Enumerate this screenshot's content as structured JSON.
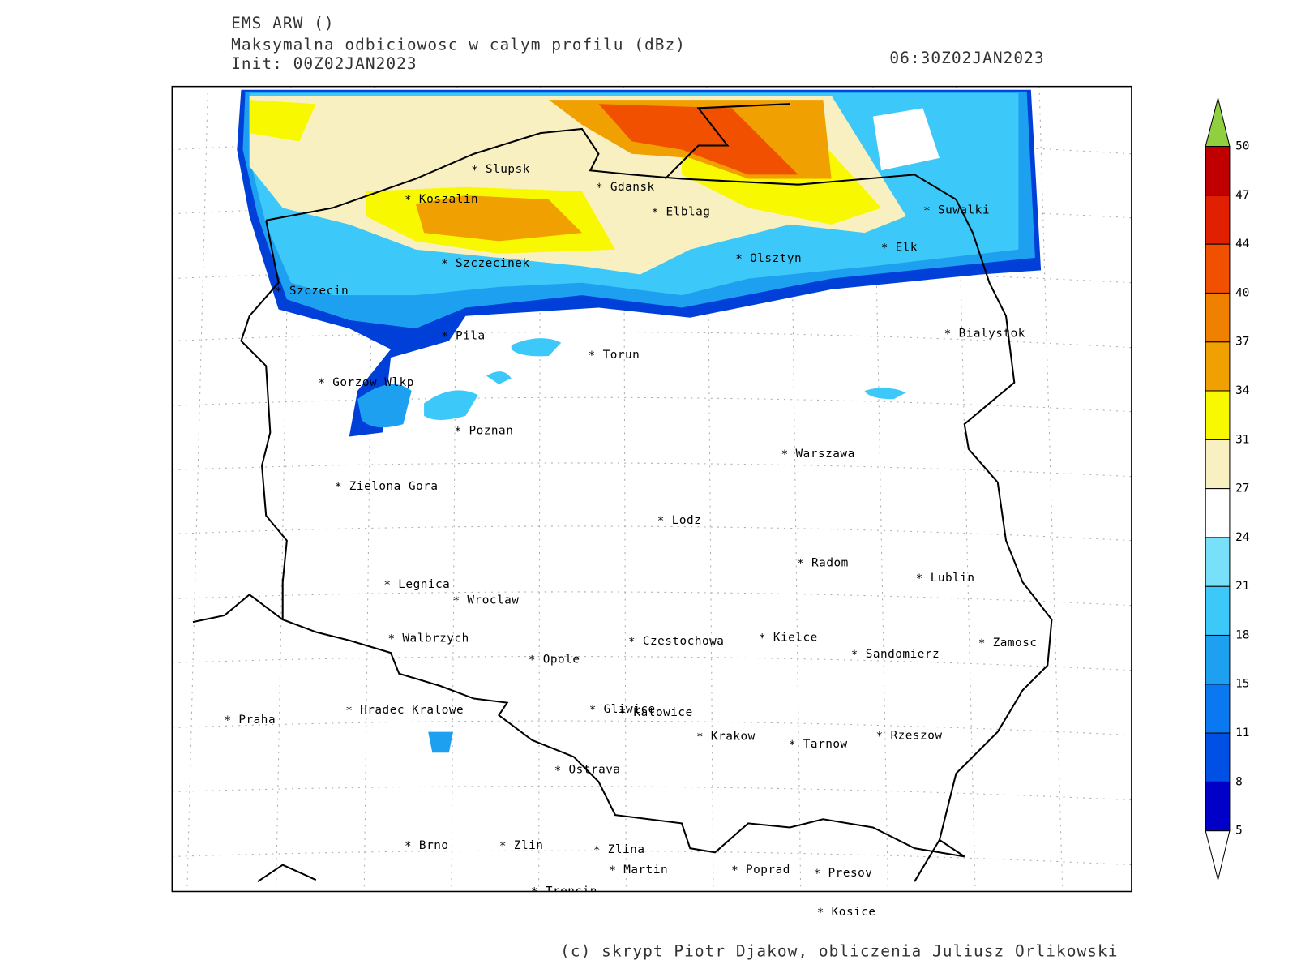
{
  "header": {
    "model": "EMS ARW ()",
    "field": "Maksymalna odbiciowosc w calym profilu (dBz)",
    "init": "Init: 00Z02JAN2023",
    "valid": "06:30Z02JAN2023"
  },
  "cities": [
    {
      "name": "Slupsk"
    },
    {
      "name": "Koszalin"
    },
    {
      "name": "Gdansk"
    },
    {
      "name": "Elblag"
    },
    {
      "name": "Suwalki"
    },
    {
      "name": "Elk"
    },
    {
      "name": "Olsztyn"
    },
    {
      "name": "Szczecinek"
    },
    {
      "name": "Szczecin"
    },
    {
      "name": "Pila"
    },
    {
      "name": "Bialystok"
    },
    {
      "name": "Torun"
    },
    {
      "name": "Gorzow Wlkp"
    },
    {
      "name": "Poznan"
    },
    {
      "name": "Warszawa"
    },
    {
      "name": "Zielona Gora"
    },
    {
      "name": "Lodz"
    },
    {
      "name": "Radom"
    },
    {
      "name": "Lublin"
    },
    {
      "name": "Legnica"
    },
    {
      "name": "Wroclaw"
    },
    {
      "name": "Walbrzych"
    },
    {
      "name": "Czestochowa"
    },
    {
      "name": "Kielce"
    },
    {
      "name": "Zamosc"
    },
    {
      "name": "Sandomierz"
    },
    {
      "name": "Opole"
    },
    {
      "name": "Praha"
    },
    {
      "name": "Hradec Kralowe"
    },
    {
      "name": "Gliwice"
    },
    {
      "name": "Katowice"
    },
    {
      "name": "Krakow"
    },
    {
      "name": "Tarnow"
    },
    {
      "name": "Rzeszow"
    },
    {
      "name": "Ostrava"
    },
    {
      "name": "Brno"
    },
    {
      "name": "Zlin"
    },
    {
      "name": "Zlina"
    },
    {
      "name": "Martin"
    },
    {
      "name": "Poprad"
    },
    {
      "name": "Presov"
    },
    {
      "name": "Trencin"
    },
    {
      "name": "Kosice"
    }
  ],
  "colorbar": {
    "levels": [
      5,
      8,
      11,
      15,
      18,
      21,
      24,
      27,
      31,
      34,
      37,
      40,
      44,
      47,
      50
    ],
    "colors": [
      "#0000c8",
      "#0050e6",
      "#0a78f0",
      "#1ea0f0",
      "#3cc8f8",
      "#78e0f8",
      "#ffffff",
      "#f8f0c0",
      "#f8f800",
      "#f0a000",
      "#f08000",
      "#f05000",
      "#e02000",
      "#c00000"
    ]
  },
  "credit": "(c) skrypt Piotr Djakow, obliczenia Juliusz Orlikowski"
}
